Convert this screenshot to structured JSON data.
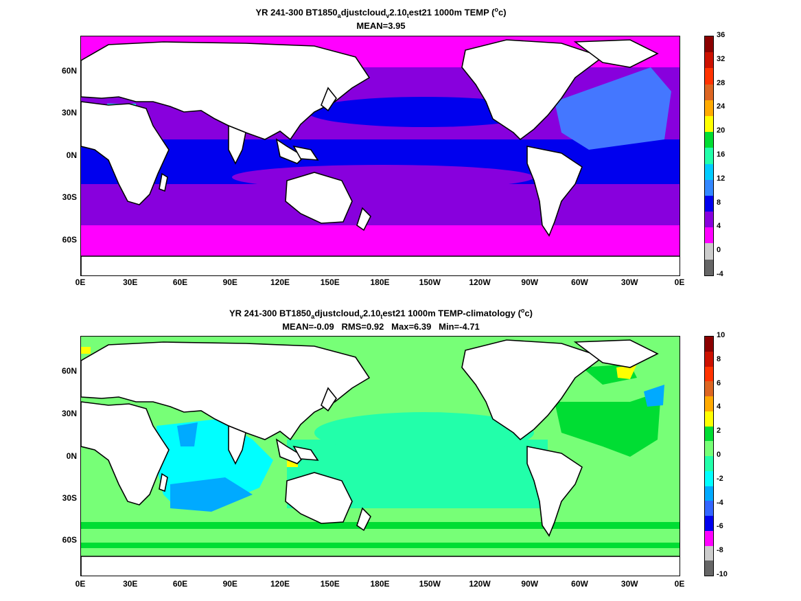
{
  "panels": [
    {
      "title_parts": [
        "YR 241-300 BT1850",
        "a",
        "djustcloud",
        "v",
        "2.10",
        "t",
        "est21 1000m TEMP (",
        "o",
        "c)"
      ],
      "stats": "MEAN=3.95",
      "colorbar": {
        "labels": [
          "36",
          "32",
          "28",
          "24",
          "20",
          "16",
          "12",
          "8",
          "4",
          "0",
          "-4"
        ],
        "colors": [
          "#8b0000",
          "#cc1100",
          "#ff3300",
          "#dd6622",
          "#ffaa00",
          "#ffff00",
          "#00dd33",
          "#22ffaa",
          "#00ccff",
          "#3388ff",
          "#0000ee",
          "#8800dd",
          "#ff00ff",
          "#cccccc",
          "#666666"
        ]
      },
      "ocean_colors": {
        "polar": "#ff00ff",
        "mid": "#8800dd",
        "warm": "#0000ee",
        "atlantic": "#4477ff",
        "med": "#00ffee"
      }
    },
    {
      "title_parts": [
        "YR 241-300 BT1850",
        "a",
        "djustcloud",
        "v",
        "2.10",
        "t",
        "est21 1000m TEMP-climatology (",
        "o",
        "c)"
      ],
      "stats": "MEAN=-0.09   RMS=0.92   Max=6.39   Min=-4.71",
      "colorbar": {
        "labels": [
          "10",
          "8",
          "6",
          "4",
          "2",
          "0",
          "-2",
          "-4",
          "-6",
          "-8",
          "-10"
        ],
        "colors": [
          "#8b0000",
          "#cc1100",
          "#ff3300",
          "#dd6622",
          "#ffaa00",
          "#ffff00",
          "#00dd33",
          "#77ff77",
          "#22ffaa",
          "#00ffff",
          "#00aaff",
          "#3366ff",
          "#0000ee",
          "#ff00ff",
          "#cccccc",
          "#666666"
        ]
      },
      "ocean_colors": {
        "base": "#77ff77",
        "cyan": "#00ffff",
        "blue": "#00aaff",
        "green": "#00dd33",
        "yellow": "#ffff00",
        "teal": "#22ffaa"
      }
    }
  ],
  "y_axis_labels": [
    "60N",
    "30N",
    "0N",
    "30S",
    "60S"
  ],
  "x_axis_labels": [
    "0E",
    "30E",
    "60E",
    "90E",
    "120E",
    "150E",
    "180E",
    "150W",
    "120W",
    "90W",
    "60W",
    "30W",
    "0E"
  ]
}
